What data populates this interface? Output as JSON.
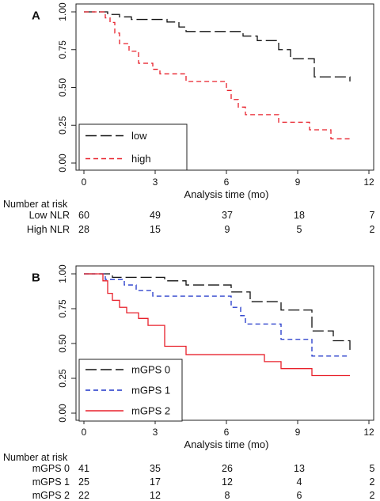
{
  "chart_data": [
    {
      "type": "line",
      "panel_label": "A",
      "xlabel": "Analysis time (mo)",
      "ylabel": "",
      "xlim": [
        0,
        12
      ],
      "ylim": [
        0,
        1
      ],
      "xticks": [
        "0",
        "3",
        "6",
        "9",
        "12"
      ],
      "yticks": [
        "0.00",
        "0.25",
        "0.50",
        "0.75",
        "1.00"
      ],
      "grid": false,
      "legend_position": "bottom-left",
      "series": [
        {
          "name": "low",
          "color": "#111111",
          "dash": "long-dash",
          "steps": [
            [
              0,
              1.0
            ],
            [
              1.0,
              0.983
            ],
            [
              1.5,
              0.967
            ],
            [
              2.0,
              0.95
            ],
            [
              3.5,
              0.933
            ],
            [
              4.0,
              0.9
            ],
            [
              4.3,
              0.87
            ],
            [
              6.7,
              0.84
            ],
            [
              7.3,
              0.81
            ],
            [
              8.2,
              0.75
            ],
            [
              8.7,
              0.69
            ],
            [
              9.7,
              0.57
            ],
            [
              11.2,
              0.54
            ]
          ],
          "end": 11.2
        },
        {
          "name": "high",
          "color": "#e8212b",
          "dash": "short-dash",
          "steps": [
            [
              0,
              1.0
            ],
            [
              0.9,
              0.96
            ],
            [
              1.1,
              0.93
            ],
            [
              1.3,
              0.86
            ],
            [
              1.5,
              0.79
            ],
            [
              1.9,
              0.74
            ],
            [
              2.3,
              0.66
            ],
            [
              2.9,
              0.62
            ],
            [
              3.2,
              0.59
            ],
            [
              4.3,
              0.54
            ],
            [
              6.0,
              0.48
            ],
            [
              6.2,
              0.42
            ],
            [
              6.5,
              0.37
            ],
            [
              6.8,
              0.32
            ],
            [
              8.2,
              0.27
            ],
            [
              9.5,
              0.22
            ],
            [
              10.4,
              0.16
            ]
          ],
          "end": 11.2
        }
      ]
    },
    {
      "type": "line",
      "panel_label": "B",
      "xlabel": "Analysis time (mo)",
      "ylabel": "",
      "xlim": [
        0,
        12
      ],
      "ylim": [
        0,
        1
      ],
      "xticks": [
        "0",
        "3",
        "6",
        "9",
        "12"
      ],
      "yticks": [
        "0.00",
        "0.25",
        "0.50",
        "0.75",
        "1.00"
      ],
      "grid": false,
      "legend_position": "bottom-left",
      "series": [
        {
          "name": "mGPS 0",
          "color": "#111111",
          "dash": "long-dash",
          "steps": [
            [
              0,
              1.0
            ],
            [
              1.2,
              0.975
            ],
            [
              3.4,
              0.95
            ],
            [
              4.3,
              0.92
            ],
            [
              6.2,
              0.87
            ],
            [
              7.0,
              0.8
            ],
            [
              8.3,
              0.74
            ],
            [
              9.6,
              0.59
            ],
            [
              10.5,
              0.52
            ],
            [
              11.2,
              0.45
            ]
          ],
          "end": 11.2
        },
        {
          "name": "mGPS 1",
          "color": "#1f35c9",
          "dash": "short-dash",
          "steps": [
            [
              0,
              1.0
            ],
            [
              0.9,
              0.96
            ],
            [
              1.7,
              0.92
            ],
            [
              2.2,
              0.88
            ],
            [
              2.9,
              0.84
            ],
            [
              6.2,
              0.76
            ],
            [
              6.6,
              0.7
            ],
            [
              6.8,
              0.64
            ],
            [
              8.3,
              0.53
            ],
            [
              9.6,
              0.41
            ]
          ],
          "end": 11.2
        },
        {
          "name": "mGPS 2",
          "color": "#e8212b",
          "dash": "solid",
          "steps": [
            [
              0,
              1.0
            ],
            [
              0.8,
              0.95
            ],
            [
              1.0,
              0.86
            ],
            [
              1.2,
              0.81
            ],
            [
              1.5,
              0.76
            ],
            [
              1.8,
              0.72
            ],
            [
              2.3,
              0.68
            ],
            [
              2.7,
              0.63
            ],
            [
              3.4,
              0.48
            ],
            [
              4.3,
              0.42
            ],
            [
              7.6,
              0.37
            ],
            [
              8.3,
              0.32
            ],
            [
              9.6,
              0.27
            ]
          ],
          "end": 11.2
        }
      ]
    }
  ],
  "risk_tables": [
    {
      "header": "Number at risk",
      "rows": [
        {
          "label": "Low NLR",
          "values": [
            "60",
            "49",
            "37",
            "18",
            "7"
          ]
        },
        {
          "label": "High NLR",
          "values": [
            "28",
            "15",
            "9",
            "5",
            "2"
          ]
        }
      ]
    },
    {
      "header": "Number at risk",
      "rows": [
        {
          "label": "mGPS 0",
          "values": [
            "41",
            "35",
            "26",
            "13",
            "5"
          ]
        },
        {
          "label": "mGPS 1",
          "values": [
            "25",
            "17",
            "12",
            "4",
            "2"
          ]
        },
        {
          "label": "mGPS 2",
          "values": [
            "22",
            "12",
            "8",
            "6",
            "2"
          ]
        }
      ]
    }
  ]
}
